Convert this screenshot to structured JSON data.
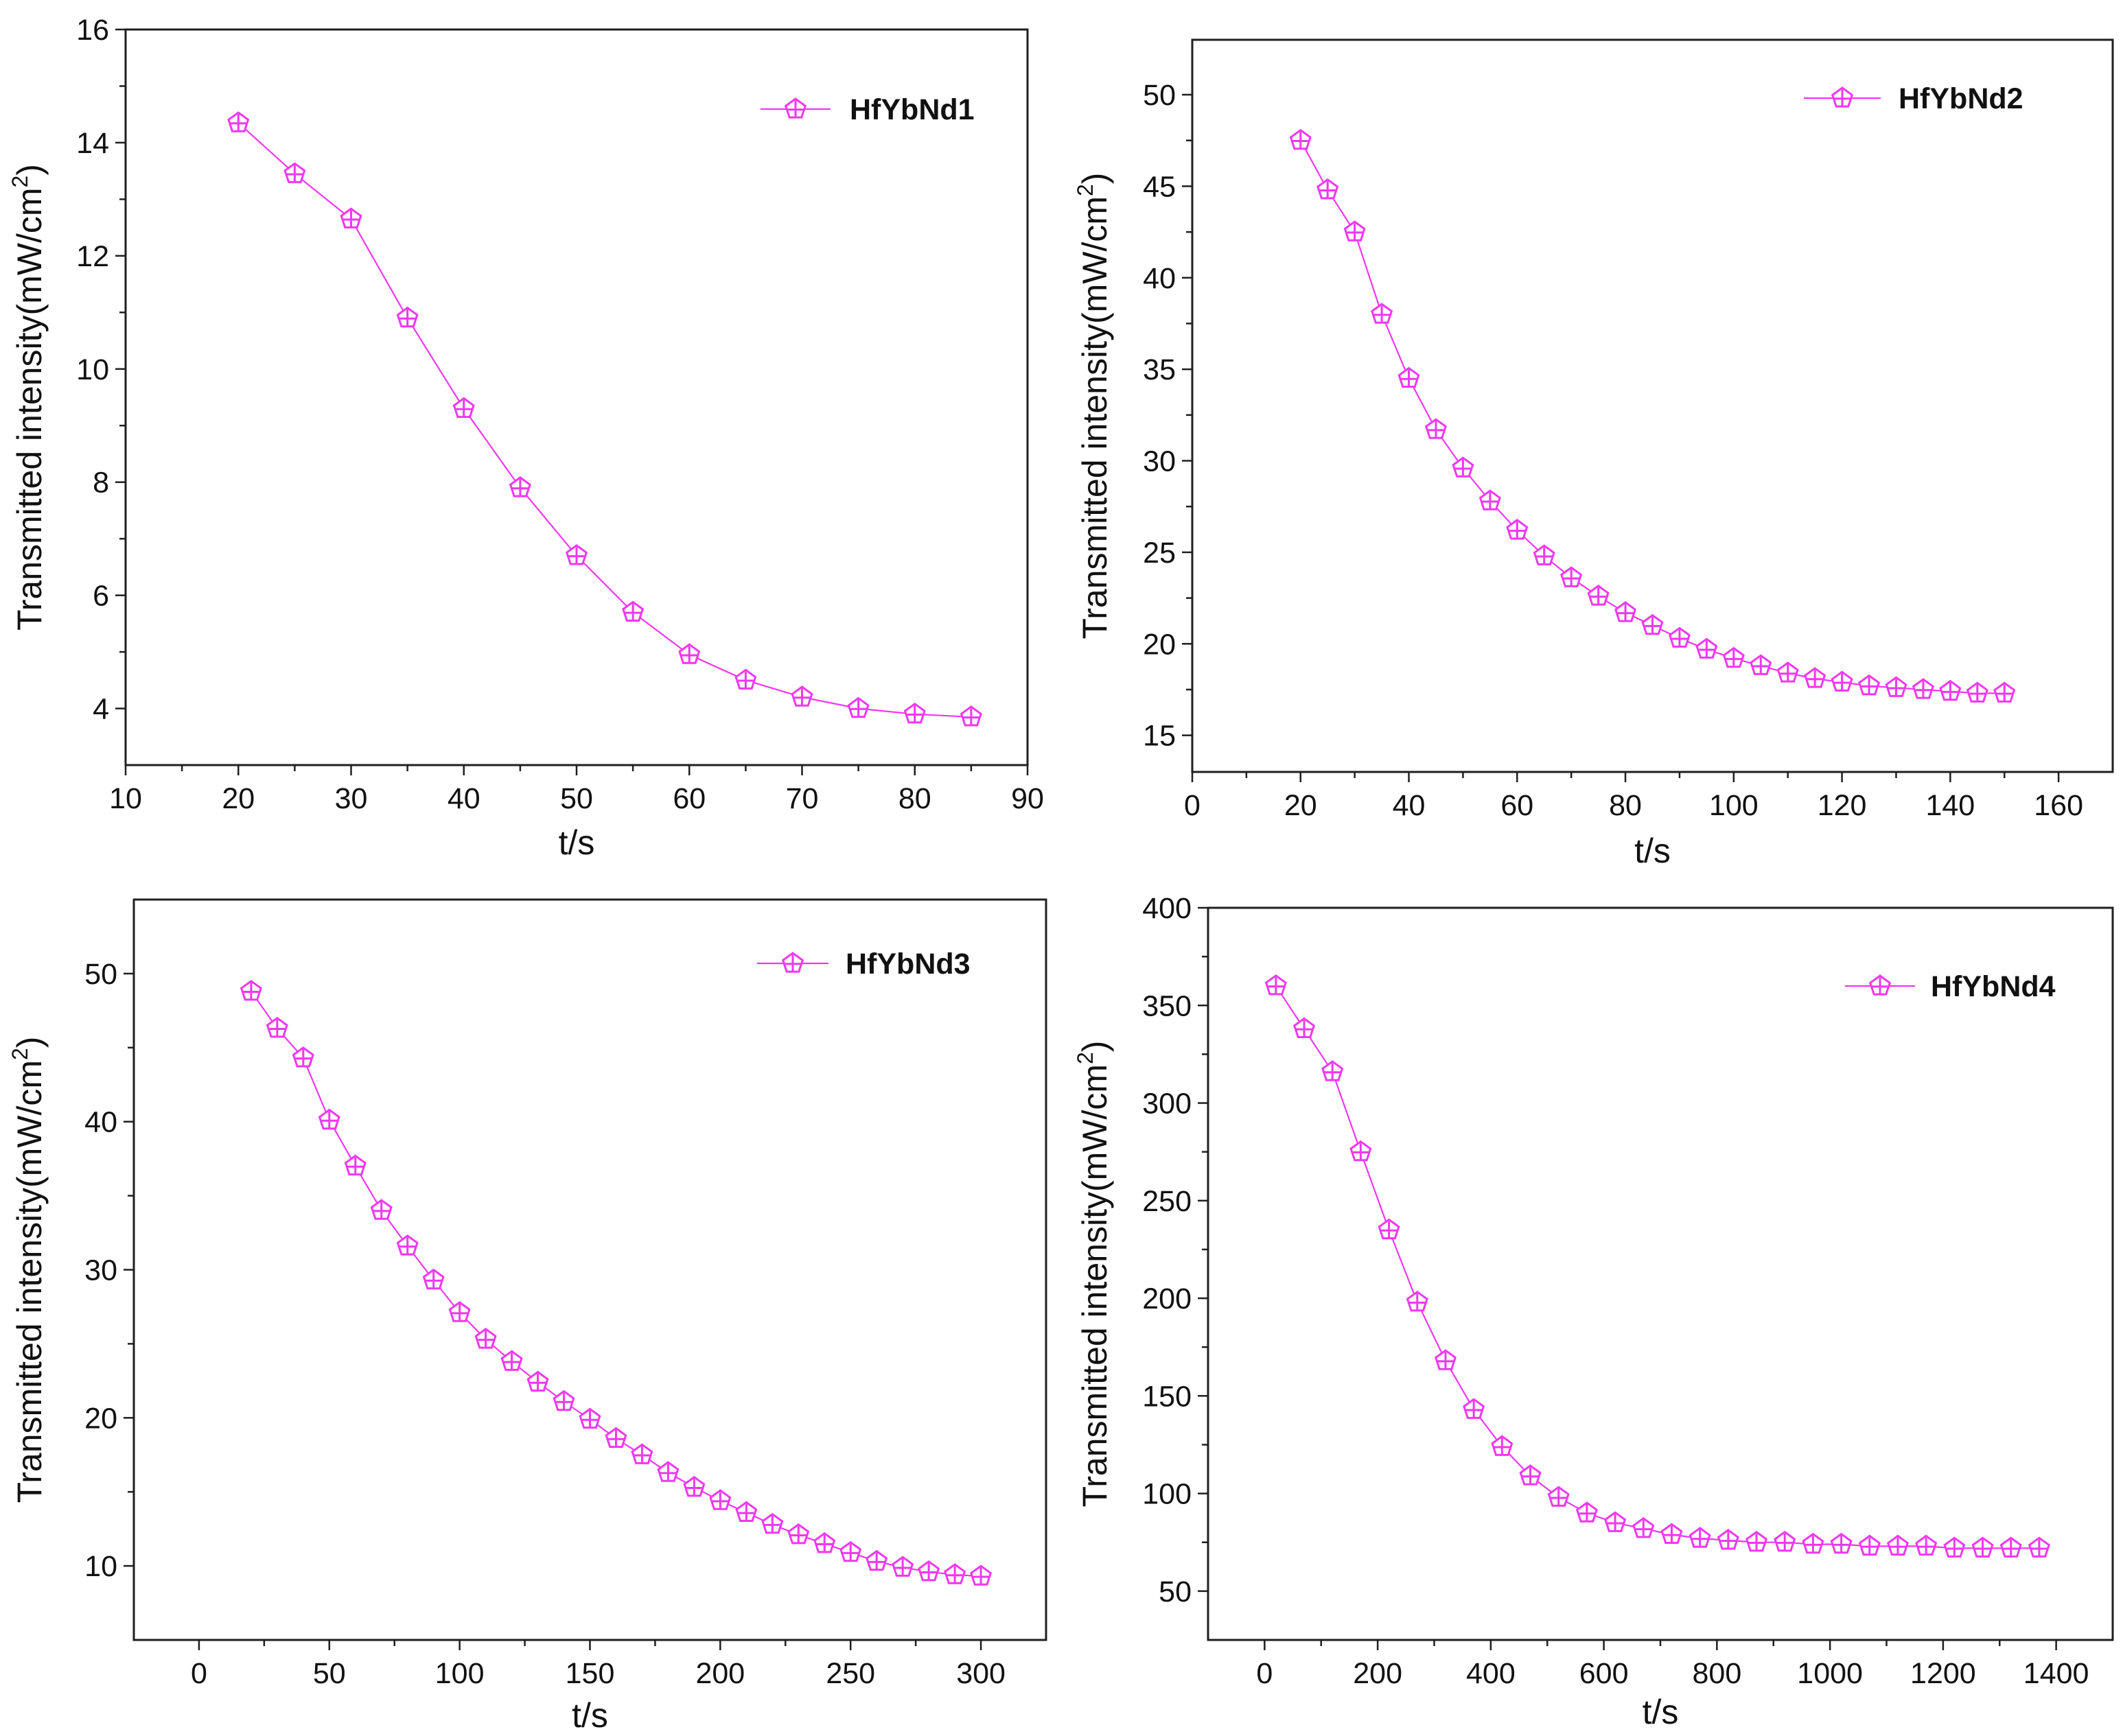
{
  "series_color": "#f038f0",
  "chart_data": [
    {
      "type": "line",
      "panel": "top-left",
      "xlabel": "t/s",
      "ylabel": "Transmitted intensity(mW/cm2)",
      "ylabel_parts": [
        "Transmitted intensity(mW/cm",
        "2",
        ")"
      ],
      "xlim": [
        10,
        90
      ],
      "ylim": [
        3,
        16
      ],
      "xticks": [
        10,
        20,
        30,
        40,
        50,
        60,
        70,
        80,
        90
      ],
      "yticks": [
        4,
        6,
        8,
        10,
        12,
        14,
        16
      ],
      "legend_position": "top-right",
      "series": [
        {
          "name": "HfYbNd1",
          "x": [
            20,
            25,
            30,
            35,
            40,
            45,
            50,
            55,
            60,
            65,
            70,
            75,
            80,
            85
          ],
          "y": [
            14.35,
            13.45,
            12.65,
            10.9,
            9.3,
            7.9,
            6.7,
            5.7,
            4.95,
            4.5,
            4.2,
            4.0,
            3.9,
            3.85
          ]
        }
      ]
    },
    {
      "type": "line",
      "panel": "top-right",
      "xlabel": "t/s",
      "ylabel": "Transmitted intensity(mW/cm2)",
      "ylabel_parts": [
        "Transmitted intensity(mW/cm",
        "2",
        ")"
      ],
      "xlim": [
        0,
        170
      ],
      "ylim": [
        13,
        53
      ],
      "xticks": [
        0,
        20,
        40,
        60,
        80,
        100,
        120,
        140,
        160
      ],
      "yticks": [
        15,
        20,
        25,
        30,
        35,
        40,
        45,
        50
      ],
      "legend_position": "top-right",
      "series": [
        {
          "name": "HfYbNd2",
          "x": [
            20,
            25,
            30,
            35,
            40,
            45,
            50,
            55,
            60,
            65,
            70,
            75,
            80,
            85,
            90,
            95,
            100,
            105,
            110,
            115,
            120,
            125,
            130,
            135,
            140,
            145,
            150
          ],
          "y": [
            47.5,
            44.8,
            42.5,
            38.0,
            34.5,
            31.7,
            29.6,
            27.8,
            26.2,
            24.8,
            23.6,
            22.6,
            21.7,
            21.0,
            20.3,
            19.7,
            19.2,
            18.8,
            18.4,
            18.1,
            17.9,
            17.7,
            17.6,
            17.5,
            17.4,
            17.3,
            17.3
          ]
        }
      ]
    },
    {
      "type": "line",
      "panel": "bottom-left",
      "xlabel": "t/s",
      "ylabel": "Transmitted intensity(mW/cm2)",
      "ylabel_parts": [
        "Transmitted intensity(mW/cm",
        "2",
        ")"
      ],
      "xlim": [
        -25,
        325
      ],
      "ylim": [
        5,
        55
      ],
      "xticks": [
        0,
        50,
        100,
        150,
        200,
        250,
        300
      ],
      "yticks": [
        10,
        20,
        30,
        40,
        50
      ],
      "legend_position": "top-right",
      "series": [
        {
          "name": "HfYbNd3",
          "x": [
            20,
            30,
            40,
            50,
            60,
            70,
            80,
            90,
            100,
            110,
            120,
            130,
            140,
            150,
            160,
            170,
            180,
            190,
            200,
            210,
            220,
            230,
            240,
            250,
            260,
            270,
            280,
            290,
            300
          ],
          "y": [
            48.8,
            46.3,
            44.3,
            40.1,
            37.0,
            34.0,
            31.6,
            29.3,
            27.1,
            25.3,
            23.8,
            22.4,
            21.1,
            19.9,
            18.6,
            17.5,
            16.3,
            15.3,
            14.4,
            13.6,
            12.8,
            12.1,
            11.5,
            10.9,
            10.3,
            9.9,
            9.6,
            9.4,
            9.3
          ]
        }
      ]
    },
    {
      "type": "line",
      "panel": "bottom-right",
      "xlabel": "t/s",
      "ylabel": "Transmitted intensity(mW/cm2)",
      "ylabel_parts": [
        "Transmitted intensity(mW/cm",
        "2",
        ")"
      ],
      "xlim": [
        -100,
        1500
      ],
      "ylim": [
        25,
        400
      ],
      "xticks": [
        0,
        200,
        400,
        600,
        800,
        1000,
        1200,
        1400
      ],
      "yticks": [
        50,
        100,
        150,
        200,
        250,
        300,
        350,
        400
      ],
      "legend_position": "top-right",
      "series": [
        {
          "name": "HfYbNd4",
          "x": [
            20,
            70,
            120,
            170,
            220,
            270,
            320,
            370,
            420,
            470,
            520,
            570,
            620,
            670,
            720,
            770,
            820,
            870,
            920,
            970,
            1020,
            1070,
            1120,
            1170,
            1220,
            1270,
            1320,
            1370
          ],
          "y": [
            360,
            338,
            316,
            275,
            235,
            198,
            168,
            143,
            124,
            109,
            98,
            90,
            85,
            82,
            79,
            77,
            76,
            75,
            75,
            74,
            74,
            73,
            73,
            73,
            72,
            72,
            72,
            72
          ]
        }
      ]
    }
  ]
}
